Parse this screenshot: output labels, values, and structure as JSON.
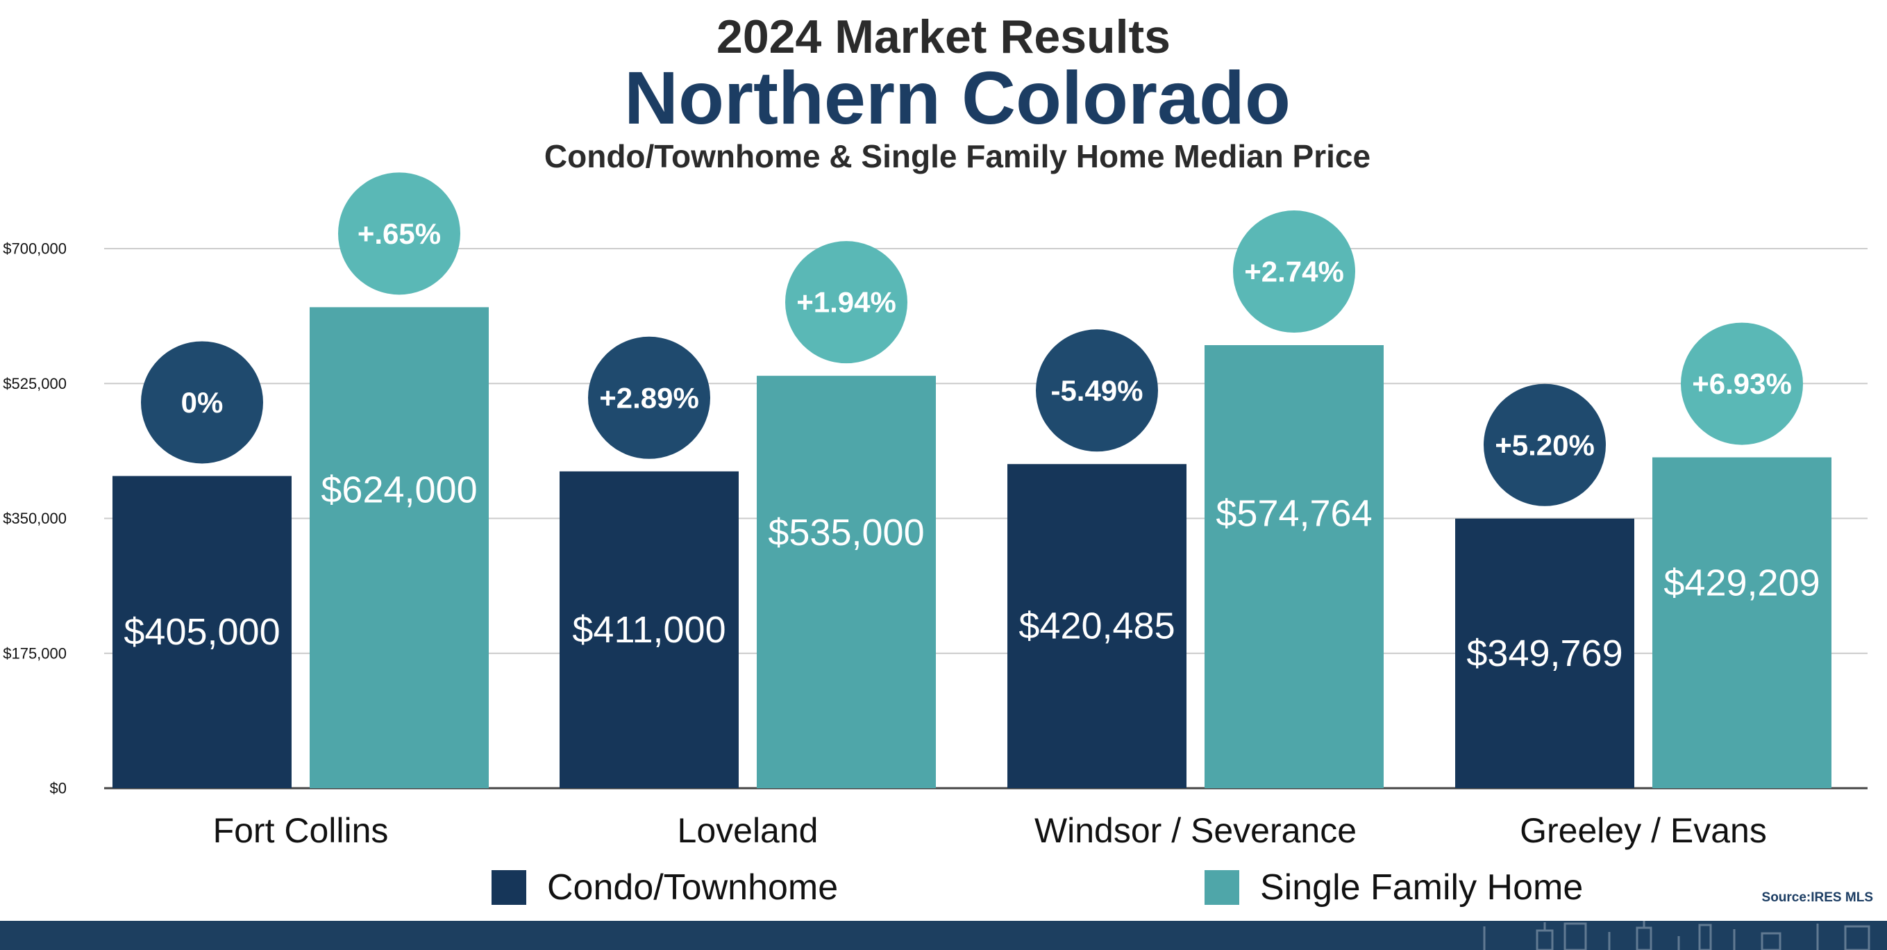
{
  "header": {
    "line1": "2024 Market Results",
    "line2": "Northern Colorado",
    "line3": "Condo/Townhome & Single Family Home Median Price"
  },
  "colors": {
    "condo": "#163659",
    "condo_badge": "#1f4a6e",
    "single_family": "#4fa6a9",
    "single_family_badge": "#5ab8b6",
    "grid": "#cccccc",
    "footer": "#1d3f60"
  },
  "source": "Source:IRES MLS",
  "chart_data": {
    "type": "bar",
    "categories": [
      "Fort Collins",
      "Loveland",
      "Windsor / Severance",
      "Greeley / Evans"
    ],
    "series": [
      {
        "name": "Condo/Townhome",
        "values": [
          405000,
          411000,
          420485,
          349769
        ],
        "value_labels": [
          "$405,000",
          "$411,000",
          "$420,485",
          "$349,769"
        ],
        "change_labels": [
          "0%",
          "+2.89%",
          "-5.49%",
          "+5.20%"
        ]
      },
      {
        "name": "Single Family Home",
        "values": [
          624000,
          535000,
          574764,
          429209
        ],
        "value_labels": [
          "$624,000",
          "$535,000",
          "$574,764",
          "$429,209"
        ],
        "change_labels": [
          "+.65%",
          "+1.94%",
          "+2.74%",
          "+6.93%"
        ]
      }
    ],
    "ylim": [
      0,
      700000
    ],
    "yticks": [
      0,
      175000,
      350000,
      525000,
      700000
    ],
    "ytick_labels": [
      "$0",
      "$175,000",
      "$350,000",
      "$525,000",
      "$700,000"
    ],
    "grid": true,
    "legend_position": "bottom"
  }
}
